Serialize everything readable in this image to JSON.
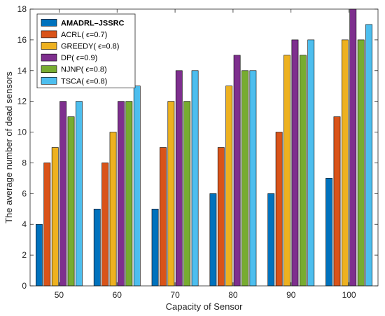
{
  "chart_data": {
    "type": "bar",
    "xlabel": "Capacity of Sensor",
    "ylabel": "The average number of dead sensors",
    "categories": [
      "50",
      "60",
      "70",
      "80",
      "90",
      "100"
    ],
    "ylim": [
      0,
      18
    ],
    "yticks": [
      0,
      2,
      4,
      6,
      8,
      10,
      12,
      14,
      16,
      18
    ],
    "legend_position": "top-left",
    "grid": false,
    "series": [
      {
        "name": "AMADRL–JSSRC",
        "color": "#0072BD",
        "values": [
          4,
          5,
          5,
          6,
          6,
          7
        ]
      },
      {
        "name": "ACRL( ϵ=0.7)",
        "color": "#D95319",
        "values": [
          8,
          8,
          9,
          9,
          10,
          11
        ]
      },
      {
        "name": "GREEDY( ϵ=0.8)",
        "color": "#EDB120",
        "values": [
          9,
          10,
          12,
          13,
          15,
          16
        ]
      },
      {
        "name": "DP( ϵ=0.9)",
        "color": "#7E2F8E",
        "values": [
          12,
          12,
          14,
          15,
          16,
          18
        ]
      },
      {
        "name": "NJNP( ϵ=0.8)",
        "color": "#77AC30",
        "values": [
          11,
          12,
          12,
          14,
          15,
          16
        ]
      },
      {
        "name": "TSCA( ϵ=0.8)",
        "color": "#4DBEEE",
        "values": [
          12,
          13,
          14,
          14,
          16,
          17
        ]
      }
    ]
  }
}
